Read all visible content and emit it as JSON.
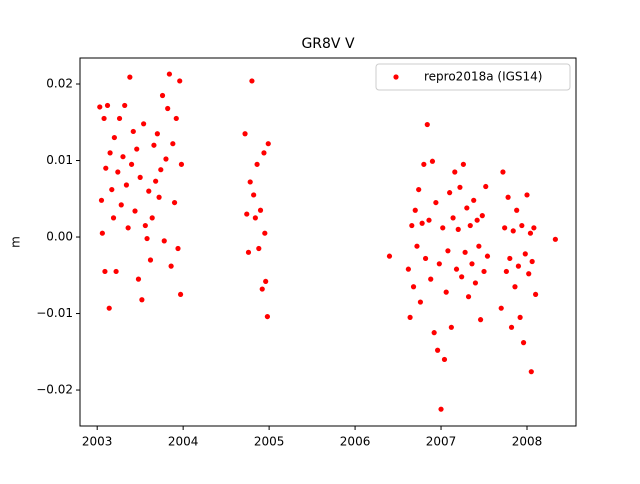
{
  "chart_data": {
    "type": "scatter",
    "title": "GR8V V",
    "y_label": "m",
    "x": [
      2003.03,
      2003.05,
      2003.06,
      2003.08,
      2003.09,
      2003.1,
      2003.12,
      2003.14,
      2003.15,
      2003.17,
      2003.19,
      2003.2,
      2003.22,
      2003.24,
      2003.26,
      2003.28,
      2003.3,
      2003.32,
      2003.34,
      2003.36,
      2003.38,
      2003.4,
      2003.42,
      2003.44,
      2003.46,
      2003.48,
      2003.5,
      2003.52,
      2003.54,
      2003.56,
      2003.58,
      2003.6,
      2003.62,
      2003.64,
      2003.66,
      2003.68,
      2003.7,
      2003.72,
      2003.74,
      2003.76,
      2003.78,
      2003.8,
      2003.82,
      2003.84,
      2003.86,
      2003.88,
      2003.9,
      2003.92,
      2003.94,
      2003.96,
      2003.97,
      2003.98,
      2004.72,
      2004.74,
      2004.76,
      2004.78,
      2004.8,
      2004.82,
      2004.84,
      2004.86,
      2004.88,
      2004.9,
      2004.92,
      2004.94,
      2004.95,
      2004.96,
      2004.98,
      2004.99,
      2006.4,
      2006.62,
      2006.64,
      2006.66,
      2006.68,
      2006.7,
      2006.72,
      2006.74,
      2006.76,
      2006.78,
      2006.8,
      2006.82,
      2006.84,
      2006.86,
      2006.88,
      2006.9,
      2006.92,
      2006.94,
      2006.96,
      2006.98,
      2007.0,
      2007.02,
      2007.04,
      2007.06,
      2007.08,
      2007.1,
      2007.12,
      2007.14,
      2007.16,
      2007.18,
      2007.2,
      2007.22,
      2007.24,
      2007.26,
      2007.28,
      2007.3,
      2007.32,
      2007.34,
      2007.36,
      2007.38,
      2007.4,
      2007.42,
      2007.44,
      2007.46,
      2007.48,
      2007.5,
      2007.52,
      2007.54,
      2007.7,
      2007.72,
      2007.74,
      2007.76,
      2007.78,
      2007.8,
      2007.82,
      2007.84,
      2007.86,
      2007.88,
      2007.9,
      2007.92,
      2007.94,
      2007.96,
      2007.98,
      2008.0,
      2008.02,
      2008.04,
      2008.05,
      2008.06,
      2008.08,
      2008.1,
      2008.33
    ],
    "series": [
      {
        "name": "repro2018a (IGS14)",
        "color": "#ff0000",
        "values": [
          0.017,
          0.0048,
          0.0005,
          0.0155,
          -0.0045,
          0.009,
          0.0172,
          -0.0093,
          0.011,
          0.0062,
          0.0025,
          0.013,
          -0.0045,
          0.0085,
          0.0155,
          0.0042,
          0.0105,
          0.0172,
          0.0068,
          0.0012,
          0.0209,
          0.0095,
          0.0138,
          0.0034,
          0.0115,
          -0.0055,
          0.0078,
          -0.0082,
          0.0148,
          0.0015,
          -0.0002,
          0.006,
          -0.003,
          0.0025,
          0.012,
          0.0073,
          0.0135,
          0.0052,
          0.0088,
          0.0185,
          -0.0005,
          0.0102,
          0.0168,
          0.0213,
          -0.0038,
          0.0122,
          0.0045,
          0.0155,
          -0.0015,
          0.0204,
          -0.0075,
          0.0095,
          0.0135,
          0.003,
          -0.002,
          0.0072,
          0.0204,
          0.0055,
          0.0025,
          0.0095,
          -0.0015,
          0.0035,
          -0.0068,
          0.011,
          0.0005,
          -0.0058,
          -0.0104,
          0.0122,
          -0.0025,
          -0.0042,
          -0.0105,
          0.0015,
          -0.0065,
          0.0035,
          -0.0012,
          0.0062,
          -0.0085,
          0.0018,
          0.0095,
          -0.0028,
          0.0147,
          0.0022,
          -0.0055,
          0.0099,
          -0.0125,
          0.0045,
          -0.0148,
          -0.0035,
          -0.0225,
          0.0012,
          -0.016,
          -0.0072,
          -0.0018,
          0.0058,
          -0.0118,
          0.0025,
          0.0085,
          -0.0042,
          0.001,
          0.0065,
          -0.0052,
          0.0095,
          -0.002,
          0.0038,
          -0.0078,
          0.0015,
          -0.0035,
          0.0048,
          -0.006,
          0.0022,
          -0.0012,
          -0.0108,
          0.0028,
          -0.0045,
          0.0066,
          -0.0025,
          -0.0093,
          0.0085,
          0.0012,
          -0.0045,
          0.0052,
          -0.0028,
          -0.0118,
          0.0008,
          -0.0065,
          0.0035,
          -0.0038,
          -0.0105,
          0.0015,
          -0.0138,
          -0.0022,
          0.0055,
          -0.0048,
          0.0005,
          -0.0176,
          -0.0032,
          0.0012,
          -0.0075,
          -0.0003
        ]
      }
    ],
    "xlim": [
      2002.8,
      2008.57
    ],
    "xticks": [
      2003,
      2004,
      2005,
      2006,
      2007,
      2008
    ],
    "ylim": [
      -0.0247,
      0.0234
    ],
    "yticks": [
      {
        "value": -0.02,
        "label": "−0.02"
      },
      {
        "value": -0.01,
        "label": "−0.01"
      },
      {
        "value": 0,
        "label": "0.00"
      },
      0.01,
      0.02
    ],
    "legend": "upper right",
    "grid": false
  }
}
